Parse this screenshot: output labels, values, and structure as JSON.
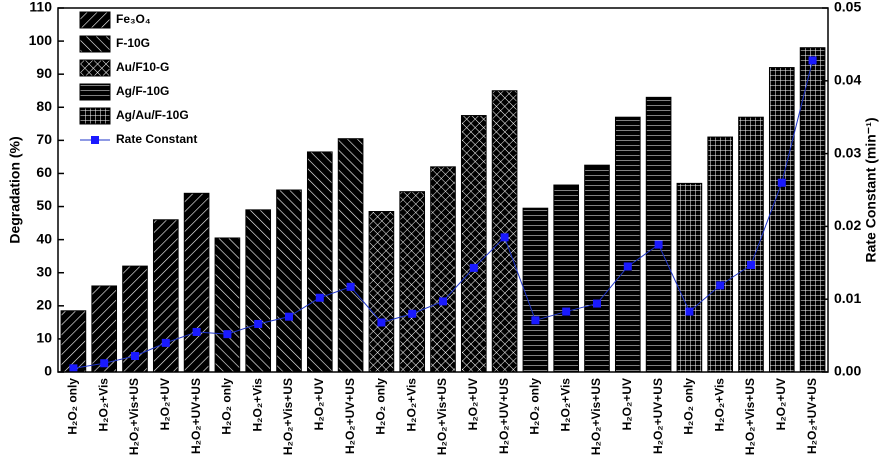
{
  "chart_data": {
    "type": "bar",
    "y_label": "Degradation (%)",
    "y2_label": "Rate Constant (min⁻¹)",
    "categories": [
      "H₂O₂ only",
      "H₂O₂+Vis",
      "H₂O₂+Vis+US",
      "H₂O₂+UV",
      "H₂O₂+UV+US",
      "H₂O₂ only",
      "H₂O₂+Vis",
      "H₂O₂+Vis+US",
      "H₂O₂+UV",
      "H₂O₂+UV+US",
      "H₂O₂ only",
      "H₂O₂+Vis",
      "H₂O₂+Vis+US",
      "H₂O₂+UV",
      "H₂O₂+UV+US",
      "H₂O₂ only",
      "H₂O₂+Vis",
      "H₂O₂+Vis+US",
      "H₂O₂+UV",
      "H₂O₂+UV+US",
      "H₂O₂ only",
      "H₂O₂+Vis",
      "H₂O₂+Vis+US",
      "H₂O₂+UV",
      "H₂O₂+UV+US"
    ],
    "series": [
      {
        "name": "Fe₃O₄",
        "color": "#000000",
        "values": [
          18.5,
          26,
          32,
          46,
          54,
          null,
          null,
          null,
          null,
          null,
          null,
          null,
          null,
          null,
          null,
          null,
          null,
          null,
          null,
          null,
          null,
          null,
          null,
          null,
          null
        ]
      },
      {
        "name": "F-10G",
        "color": "#000000",
        "values": [
          null,
          null,
          null,
          null,
          null,
          40.5,
          49,
          55,
          66.5,
          70.5,
          null,
          null,
          null,
          null,
          null,
          null,
          null,
          null,
          null,
          null,
          null,
          null,
          null,
          null,
          null
        ]
      },
      {
        "name": "Au/F10-G",
        "color": "#000000",
        "values": [
          null,
          null,
          null,
          null,
          null,
          null,
          null,
          null,
          null,
          null,
          48.5,
          54.5,
          62,
          77.5,
          85,
          null,
          null,
          null,
          null,
          null,
          null,
          null,
          null,
          null,
          null
        ]
      },
      {
        "name": "Ag/F-10G",
        "color": "#000000",
        "values": [
          null,
          null,
          null,
          null,
          null,
          null,
          null,
          null,
          null,
          null,
          null,
          null,
          null,
          null,
          null,
          49.5,
          56.5,
          62.5,
          77,
          83,
          null,
          null,
          null,
          null,
          null
        ]
      },
      {
        "name": "Ag/Au/F-10G",
        "color": "#000000",
        "values": [
          null,
          null,
          null,
          null,
          null,
          null,
          null,
          null,
          null,
          null,
          null,
          null,
          null,
          null,
          null,
          null,
          null,
          null,
          null,
          null,
          57,
          71,
          77,
          92,
          98
        ]
      },
      {
        "name": "Rate Constant",
        "type": "line",
        "axis": "y2",
        "color": "#1f35c8",
        "marker_color": "#1a1aff",
        "values": [
          0.0005,
          0.0012,
          0.0022,
          0.004,
          0.0055,
          0.0052,
          0.0066,
          0.0076,
          0.0102,
          0.0117,
          0.0068,
          0.008,
          0.0097,
          0.0143,
          0.0185,
          0.0071,
          0.0083,
          0.0094,
          0.0145,
          0.0175,
          0.0083,
          0.0119,
          0.0147,
          0.026,
          0.0428
        ]
      }
    ],
    "ylim": [
      0,
      110
    ],
    "yticks": [
      0,
      10,
      20,
      30,
      40,
      50,
      60,
      70,
      80,
      90,
      100,
      110
    ],
    "y2lim": [
      0,
      0.05
    ],
    "y2ticks": [
      {
        "value": 0,
        "label": "0.00"
      },
      0.01,
      0.02,
      0.03,
      0.04,
      0.05
    ],
    "legend": "upper left"
  }
}
